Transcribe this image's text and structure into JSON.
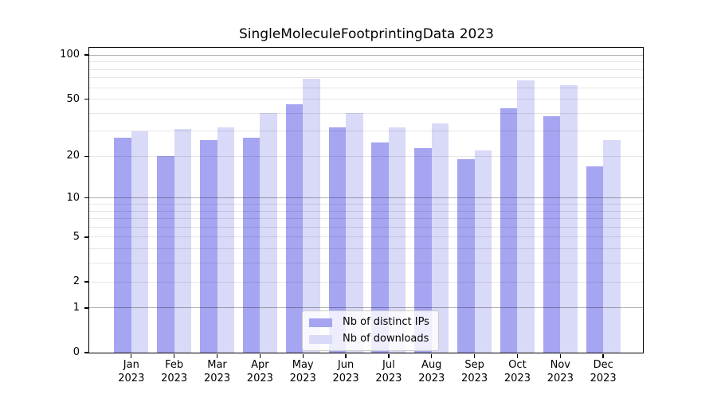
{
  "chart_data": {
    "type": "bar",
    "title": "SingleMoleculeFootprintingData 2023",
    "year": "2023",
    "months": [
      "Jan",
      "Feb",
      "Mar",
      "Apr",
      "May",
      "Jun",
      "Jul",
      "Aug",
      "Sep",
      "Oct",
      "Nov",
      "Dec"
    ],
    "categories": [
      "Jan 2023",
      "Feb 2023",
      "Mar 2023",
      "Apr 2023",
      "May 2023",
      "Jun 2023",
      "Jul 2023",
      "Aug 2023",
      "Sep 2023",
      "Oct 2023",
      "Nov 2023",
      "Dec 2023"
    ],
    "series": [
      {
        "name": "Nb of distinct IPs",
        "color": "#a5a5f2",
        "values": [
          27,
          20,
          26,
          27,
          46,
          32,
          25,
          23,
          19,
          43,
          38,
          17
        ]
      },
      {
        "name": "Nb of downloads",
        "color": "#d9d9f8",
        "values": [
          30,
          31,
          32,
          40,
          69,
          40,
          32,
          34,
          22,
          67,
          62,
          26
        ]
      }
    ],
    "xlabel": "",
    "ylabel": "",
    "y_scale": "log1p",
    "ylim": [
      0,
      113
    ],
    "y_ticks": [
      100,
      50,
      20,
      10,
      5,
      2,
      1,
      0
    ],
    "grid": {
      "major": [
        1,
        10,
        100
      ],
      "minor": [
        2,
        3,
        4,
        5,
        6,
        7,
        8,
        9,
        20,
        30,
        40,
        50,
        60,
        70,
        80,
        90
      ],
      "major_color": "#b0b0b0",
      "minor_color": "#e6e6e6"
    },
    "legend_position": "lower center",
    "axis_color": "#000000",
    "background_color": "#ffffff"
  }
}
